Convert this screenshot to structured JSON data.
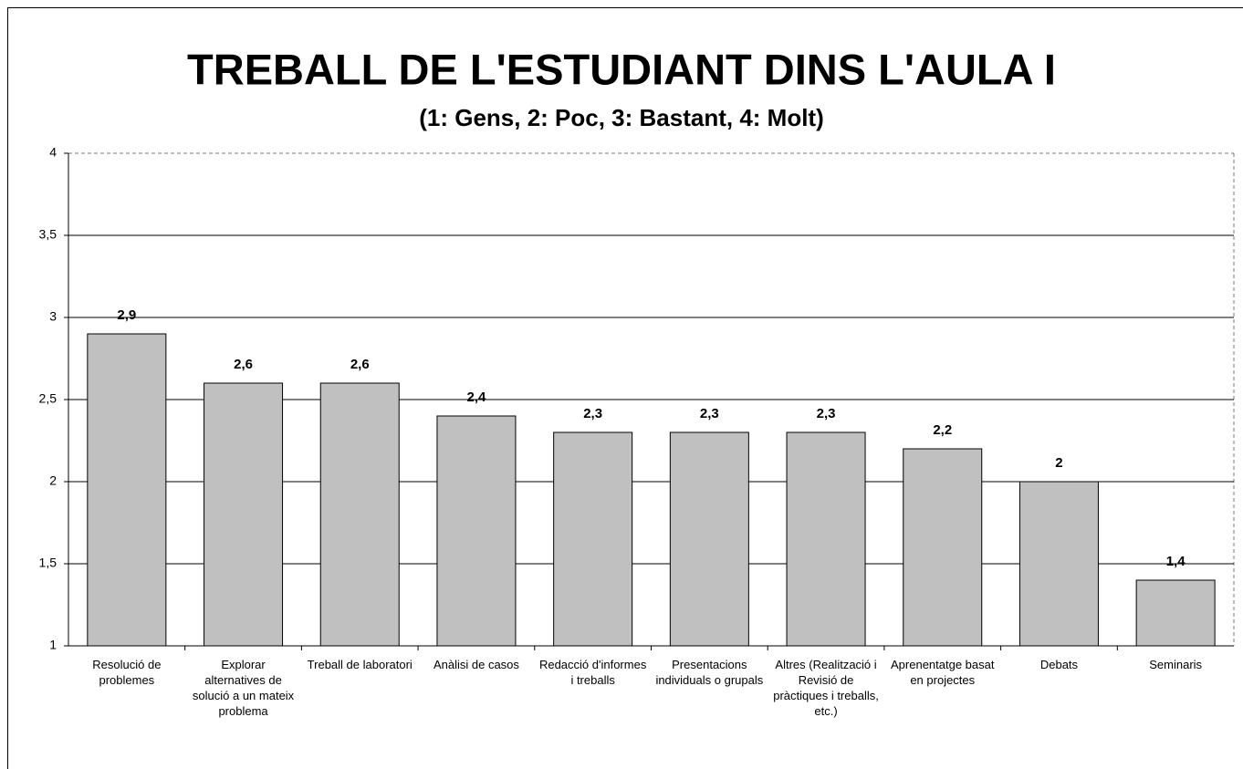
{
  "chart_data": {
    "type": "bar",
    "title": "TREBALL DE L'ESTUDIANT DINS L'AULA I",
    "subtitle": "(1: Gens, 2: Poc, 3: Bastant, 4: Molt)",
    "categories": [
      "Resolució de problemes",
      "Explorar alternatives de solució a un mateix problema",
      "Treball de laboratori",
      "Anàlisi de casos",
      "Redacció d'informes i treballs",
      "Presentacions individuals o grupals",
      "Altres (Realització i Revisió de pràctiques i treballs, etc.)",
      "Aprenentatge basat en projectes",
      "Debats",
      "Seminaris"
    ],
    "values": [
      2.9,
      2.6,
      2.6,
      2.4,
      2.3,
      2.3,
      2.3,
      2.2,
      2,
      1.4
    ],
    "value_labels": [
      "2,9",
      "2,6",
      "2,6",
      "2,4",
      "2,3",
      "2,3",
      "2,3",
      "2,2",
      "2",
      "1,4"
    ],
    "color": "#c0c0c0",
    "ylim": [
      1,
      4
    ],
    "yticks": [
      1,
      {
        "value": 1.5,
        "label": "1,5"
      },
      2,
      {
        "value": 2.5,
        "label": "2,5"
      },
      3,
      {
        "value": 3.5,
        "label": "3,5"
      },
      4
    ],
    "grid": true
  }
}
